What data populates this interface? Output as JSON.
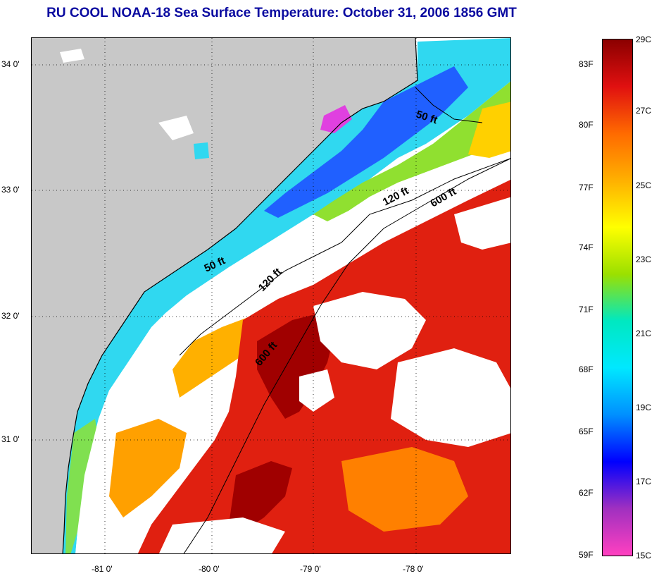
{
  "title": "RU COOL  NOAA-18  Sea Surface Temperature:  October 31, 2006 1856 GMT",
  "lat_labels": [
    "34 0'",
    "33 0'",
    "32 0'",
    "31 0'"
  ],
  "lon_labels": [
    "-81 0'",
    "-80 0'",
    "-79 0'",
    "-78 0'"
  ],
  "isobaths": [
    "50 ft",
    "120 ft",
    "600 ft",
    "50 ft",
    "120 ft",
    "600 ft"
  ],
  "colorbar": {
    "fahrenheit": [
      "83F",
      "80F",
      "77F",
      "74F",
      "71F",
      "68F",
      "65F",
      "62F",
      "59F"
    ],
    "celsius": [
      "29C",
      "27C",
      "25C",
      "23C",
      "21C",
      "19C",
      "17C",
      "15C"
    ],
    "colors": [
      "#8b0000",
      "#e01010",
      "#ff6a00",
      "#ffb000",
      "#ffff00",
      "#9be000",
      "#00e8c0",
      "#00e8ff",
      "#0090ff",
      "#0000ff",
      "#a030c0",
      "#ff40c0"
    ]
  },
  "colors": {
    "land": "#c8c8c8",
    "cloud": "#ffffff",
    "title": "#0a0aa0"
  }
}
